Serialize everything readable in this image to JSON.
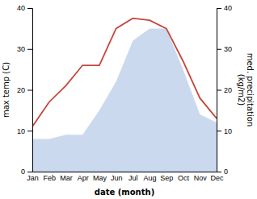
{
  "chart_data": {
    "type": "line",
    "categories": [
      "Jan",
      "Feb",
      "Mar",
      "Apr",
      "May",
      "Jun",
      "Jul",
      "Aug",
      "Sep",
      "Oct",
      "Nov",
      "Dec"
    ],
    "xlabel": "date (month)",
    "ylabel": "max temp (C)",
    "y2label": "med. precipitation\n(kg/m2)",
    "ylim": [
      0,
      40
    ],
    "yticks": [
      0,
      10,
      20,
      30,
      40
    ],
    "y2lim": [
      0,
      40
    ],
    "y2ticks": [
      0,
      10,
      20,
      30,
      40
    ],
    "grid": false,
    "series": [
      {
        "type": "area",
        "axis": "y2",
        "color": "#b8cce8",
        "values": [
          8,
          8,
          9,
          9,
          15,
          22,
          32,
          35,
          35,
          25,
          14,
          12
        ]
      },
      {
        "type": "line",
        "color": "#c8453a",
        "values": [
          11,
          17,
          21,
          26,
          26,
          35,
          37.5,
          37,
          35,
          27,
          18,
          13
        ]
      }
    ]
  }
}
